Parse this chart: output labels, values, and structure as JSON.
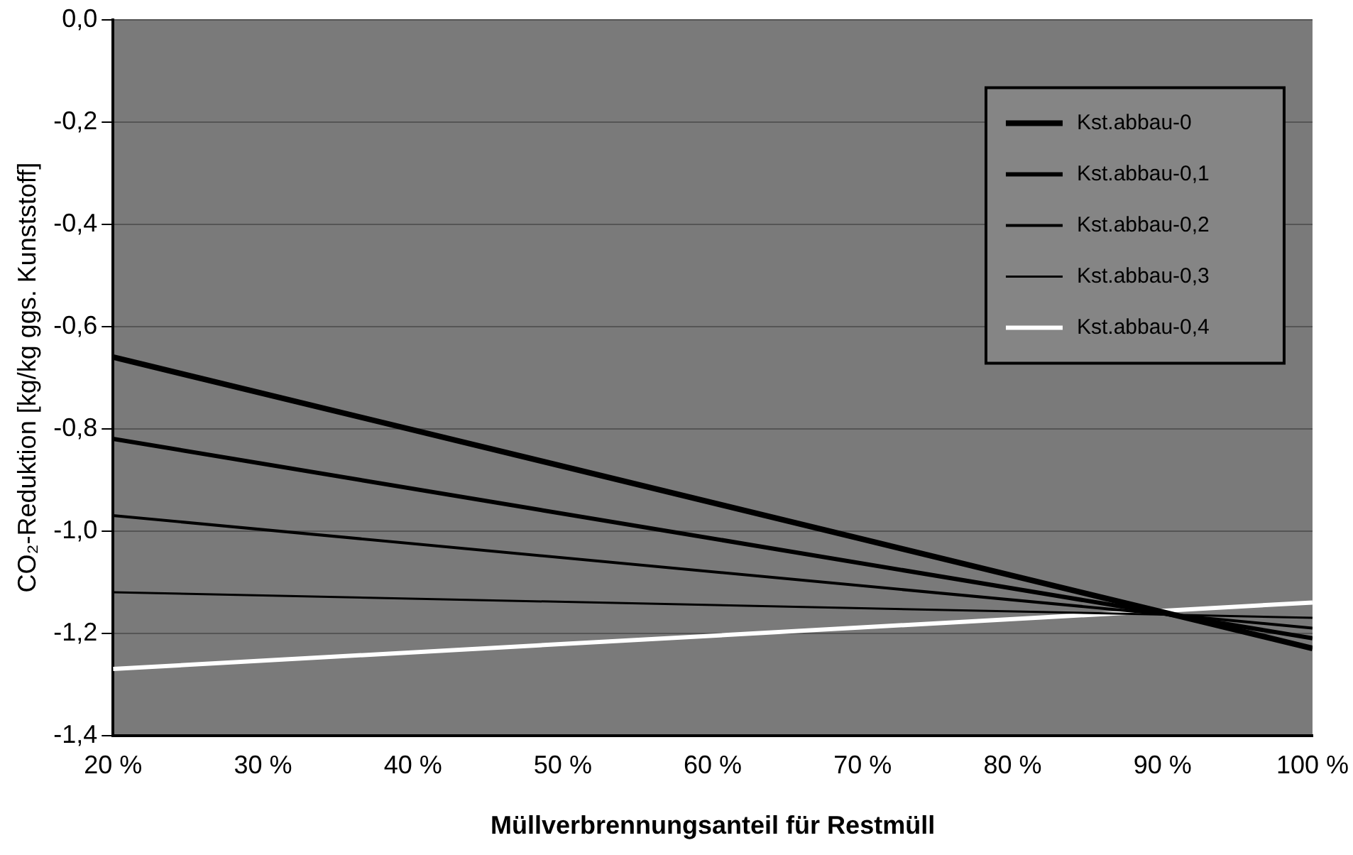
{
  "chart_data": {
    "type": "line",
    "xlabel": "Müllverbrennungsanteil für Restmüll",
    "ylabel": "CO₂-Reduktion [kg/kg ggs. Kunststoff]",
    "x": [
      20,
      100
    ],
    "series": [
      {
        "name": "Kst.abbau-0",
        "color": "#000000",
        "values": [
          -0.66,
          -1.23
        ]
      },
      {
        "name": "Kst.abbau-0,1",
        "color": "#000000",
        "values": [
          -0.82,
          -1.21
        ]
      },
      {
        "name": "Kst.abbau-0,2",
        "color": "#000000",
        "values": [
          -0.97,
          -1.19
        ]
      },
      {
        "name": "Kst.abbau-0,3",
        "color": "#000000",
        "values": [
          -1.12,
          -1.17
        ]
      },
      {
        "name": "Kst.abbau-0,4",
        "color": "#ffffff",
        "values": [
          -1.27,
          -1.14
        ]
      }
    ],
    "xlim": [
      20,
      100
    ],
    "xticks": [
      {
        "value": 20,
        "label": "20 %"
      },
      {
        "value": 30,
        "label": "30 %"
      },
      {
        "value": 40,
        "label": "40 %"
      },
      {
        "value": 50,
        "label": "50 %"
      },
      {
        "value": 60,
        "label": "60 %"
      },
      {
        "value": 70,
        "label": "70 %"
      },
      {
        "value": 80,
        "label": "80 %"
      },
      {
        "value": 90,
        "label": "90 %"
      },
      {
        "value": 100,
        "label": "100 %"
      }
    ],
    "ylim": [
      -1.4,
      0
    ],
    "yticks": [
      {
        "value": 0,
        "label": "0,0"
      },
      {
        "value": -0.2,
        "label": "-0,2"
      },
      {
        "value": -0.4,
        "label": "-0,4"
      },
      {
        "value": -0.6,
        "label": "-0,6"
      },
      {
        "value": -0.8,
        "label": "-0,8"
      },
      {
        "value": -1,
        "label": "-1,0"
      },
      {
        "value": -1.2,
        "label": "-1,2"
      },
      {
        "value": -1.4,
        "label": "-1,4"
      }
    ],
    "grid": "y",
    "legend": "top right",
    "marker": "none",
    "line_style": "solid"
  }
}
